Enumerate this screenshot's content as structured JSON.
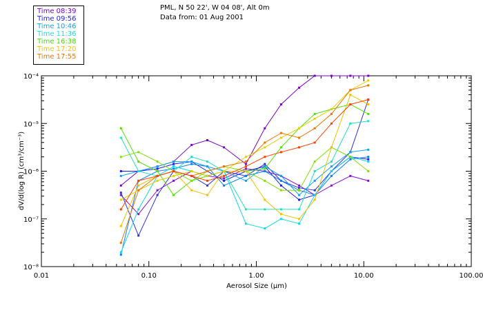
{
  "header": {
    "line1": "PML, N 50 22', W 04 08', Alt 0m",
    "line2": "Data from: 01 Aug 2001"
  },
  "legend": [
    {
      "label": "Time 08:39",
      "color": "#7a00c8"
    },
    {
      "label": "Time 09:56",
      "color": "#2020e0"
    },
    {
      "label": "Time 10:46",
      "color": "#0aa0f0"
    },
    {
      "label": "Time 11:36",
      "color": "#10e0e0"
    },
    {
      "label": "Time 16:38",
      "color": "#40e000"
    },
    {
      "label": "Time 17:20",
      "color": "#f0c000"
    },
    {
      "label": "Time 17:55",
      "color": "#f07000"
    }
  ],
  "chart_data": {
    "type": "line",
    "title": "",
    "xlabel": "Aerosol Size (μm)",
    "ylabel": "dV/d(log R) (cm³/cm⁻³)",
    "xscale": "log",
    "yscale": "log",
    "xlim": [
      0.01,
      100
    ],
    "ylim": [
      1e-08,
      0.0001
    ],
    "xticks": [
      "0.01",
      "0.10",
      "1.00",
      "10.00",
      "100.00"
    ],
    "yticks": [
      "10⁻⁸",
      "10⁻⁷",
      "10⁻⁶",
      "10⁻⁵",
      "10⁻⁴"
    ],
    "x": [
      0.055,
      0.08,
      0.12,
      0.17,
      0.25,
      0.35,
      0.5,
      0.8,
      1.2,
      1.7,
      2.5,
      3.5,
      5.0,
      7.5,
      11.0
    ],
    "series": [
      {
        "name": "Time 08:39",
        "color": "#7a00c8",
        "exponents": [
          -6.3,
          -6.0,
          -5.9,
          -5.8,
          -5.45,
          -5.35,
          -5.5,
          -5.85,
          -5.1,
          -4.6,
          -4.25,
          -4.0,
          -4.0,
          -4.0,
          -4.0
        ]
      },
      {
        "name": "Time 08:39",
        "color": "#8a10d0",
        "exponents": [
          -6.5,
          -6.9,
          -6.4,
          -6.2,
          -6.0,
          -6.1,
          -6.15,
          -5.95,
          -6.0,
          -6.1,
          -6.3,
          -6.5,
          -6.3,
          -6.1,
          -6.2
        ]
      },
      {
        "name": "Time 09:56",
        "color": "#3030d8",
        "exponents": [
          -6.45,
          -7.35,
          -6.5,
          -6.0,
          -6.1,
          -6.3,
          -6.0,
          -6.1,
          -5.85,
          -6.2,
          -6.35,
          -6.4,
          -6.0,
          -5.6,
          -4.5
        ]
      },
      {
        "name": "Time 09:56",
        "color": "#1a1ae8",
        "exponents": [
          -6.0,
          -6.0,
          -5.95,
          -5.85,
          -5.8,
          -6.0,
          -6.2,
          -6.0,
          -5.9,
          -6.3,
          -6.6,
          -6.5,
          -6.0,
          -5.7,
          -5.75
        ]
      },
      {
        "name": "Time 10:46",
        "color": "#0a80f0",
        "exponents": [
          -7.75,
          -6.2,
          -6.0,
          -5.95,
          -5.85,
          -5.9,
          -6.3,
          -6.1,
          -6.0,
          -6.2,
          -6.4,
          -6.5,
          -6.1,
          -5.75,
          -5.7
        ]
      },
      {
        "name": "Time 10:46",
        "color": "#10a0f0",
        "exponents": [
          -6.1,
          -6.0,
          -5.9,
          -5.8,
          -5.8,
          -5.9,
          -6.0,
          -6.2,
          -5.9,
          -6.1,
          -6.5,
          -6.2,
          -5.9,
          -5.6,
          -5.55
        ]
      },
      {
        "name": "Time 11:36",
        "color": "#10d8e8",
        "exponents": [
          -7.7,
          -6.8,
          -6.1,
          -5.9,
          -6.0,
          -6.1,
          -6.0,
          -7.1,
          -7.2,
          -7.0,
          -7.1,
          -6.5,
          -6.0,
          -5.7,
          -5.8
        ]
      },
      {
        "name": "Time 11:36",
        "color": "#20e0c0",
        "exponents": [
          -5.3,
          -6.0,
          -6.1,
          -6.0,
          -5.7,
          -5.8,
          -6.0,
          -6.8,
          -6.8,
          -6.8,
          -6.8,
          -6.0,
          -5.8,
          -5.0,
          -4.95
        ]
      },
      {
        "name": "Time 16:38",
        "color": "#50e000",
        "exponents": [
          -5.1,
          -5.8,
          -6.0,
          -6.5,
          -6.2,
          -6.1,
          -6.0,
          -6.0,
          -5.95,
          -5.5,
          -5.1,
          -4.8,
          -4.7,
          -4.6,
          -4.8
        ]
      },
      {
        "name": "Time 16:38",
        "color": "#80e000",
        "exponents": [
          -5.7,
          -5.6,
          -5.8,
          -6.0,
          -6.2,
          -6.0,
          -5.9,
          -6.0,
          -6.2,
          -6.4,
          -6.4,
          -5.8,
          -5.5,
          -5.7,
          -6.0
        ]
      },
      {
        "name": "Time 17:20",
        "color": "#f0c000",
        "exponents": [
          -7.15,
          -6.3,
          -6.1,
          -6.0,
          -6.4,
          -6.5,
          -6.0,
          -6.0,
          -6.6,
          -6.9,
          -7.0,
          -6.6,
          -5.5,
          -4.4,
          -4.6
        ]
      },
      {
        "name": "Time 17:20",
        "color": "#e0d000",
        "exponents": [
          -6.6,
          -6.4,
          -6.2,
          -6.1,
          -6.0,
          -6.1,
          -6.0,
          -5.7,
          -5.5,
          -5.3,
          -5.1,
          -4.9,
          -4.7,
          -4.3,
          -4.1
        ]
      },
      {
        "name": "Time 17:55",
        "color": "#f07000",
        "exponents": [
          -7.5,
          -6.4,
          -6.1,
          -6.0,
          -6.1,
          -6.0,
          -5.9,
          -5.8,
          -5.4,
          -5.2,
          -5.3,
          -5.1,
          -4.8,
          -4.3,
          -4.2
        ]
      },
      {
        "name": "Time 17:55",
        "color": "#ff4000",
        "exponents": [
          -6.8,
          -6.2,
          -6.1,
          -6.0,
          -6.1,
          -6.2,
          -6.1,
          -5.9,
          -5.7,
          -5.6,
          -5.5,
          -5.4,
          -5.0,
          -4.6,
          -4.5
        ]
      }
    ]
  }
}
